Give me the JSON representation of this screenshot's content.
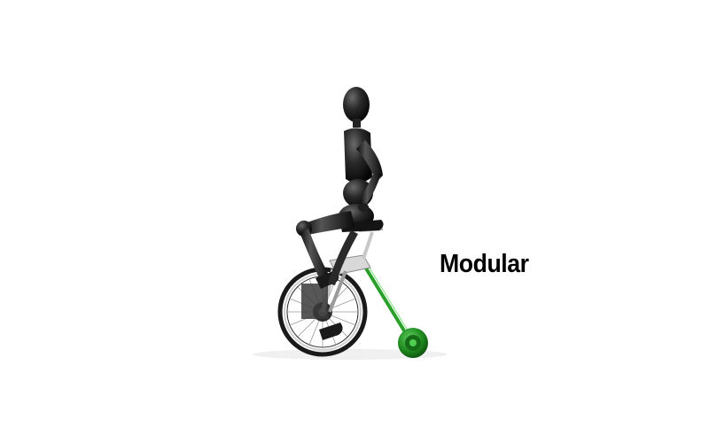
{
  "caption": {
    "text": "Modular"
  },
  "colors": {
    "background": "#ffffff",
    "figure": "#1a1a1a",
    "wheel": "#222222",
    "attachment": "#1f8a1f"
  }
}
